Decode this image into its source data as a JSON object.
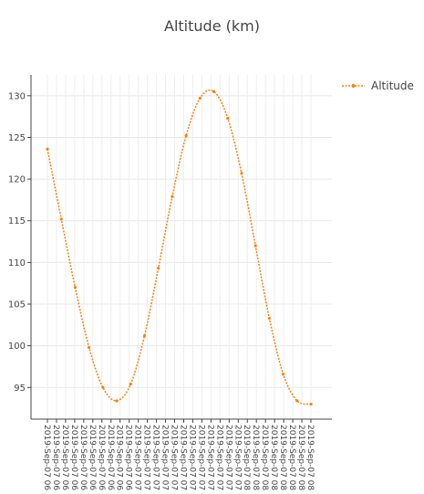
{
  "chart_data": {
    "type": "line",
    "title": "Altitude (km)",
    "xlabel": "",
    "ylabel": "",
    "ylim": [
      91.2,
      132.5
    ],
    "y_ticks": [
      95,
      100,
      105,
      110,
      115,
      120,
      125,
      130
    ],
    "x_tick_labels": [
      "2019-Sep-07 06",
      "2019-Sep-07 06",
      "2019-Sep-07 06",
      "2019-Sep-07 06",
      "2019-Sep-07 06",
      "2019-Sep-07 06",
      "2019-Sep-07 06",
      "2019-Sep-07 06",
      "2019-Sep-07 06",
      "2019-Sep-07 06",
      "2019-Sep-07 07",
      "2019-Sep-07 07",
      "2019-Sep-07 07",
      "2019-Sep-07 07",
      "2019-Sep-07 07",
      "2019-Sep-07 07",
      "2019-Sep-07 07",
      "2019-Sep-07 07",
      "2019-Sep-07 07",
      "2019-Sep-07 07",
      "2019-Sep-07 07",
      "2019-Sep-07 07",
      "2019-Sep-07 08",
      "2019-Sep-07 08",
      "2019-Sep-07 08",
      "2019-Sep-07 08",
      "2019-Sep-07 08",
      "2019-Sep-07 08",
      "2019-Sep-07 08",
      "2019-Sep-07 08"
    ],
    "grid": true,
    "legend_position": "top-right",
    "series": [
      {
        "name": "Altitude",
        "color": "#ff7f0e",
        "values": [
          123.6,
          115.2,
          107.0,
          99.8,
          95.0,
          93.4,
          95.4,
          101.2,
          109.3,
          117.9,
          125.2,
          129.7,
          130.5,
          127.3,
          120.7,
          112.0,
          103.3,
          96.6,
          93.4,
          93.0
        ]
      }
    ]
  }
}
